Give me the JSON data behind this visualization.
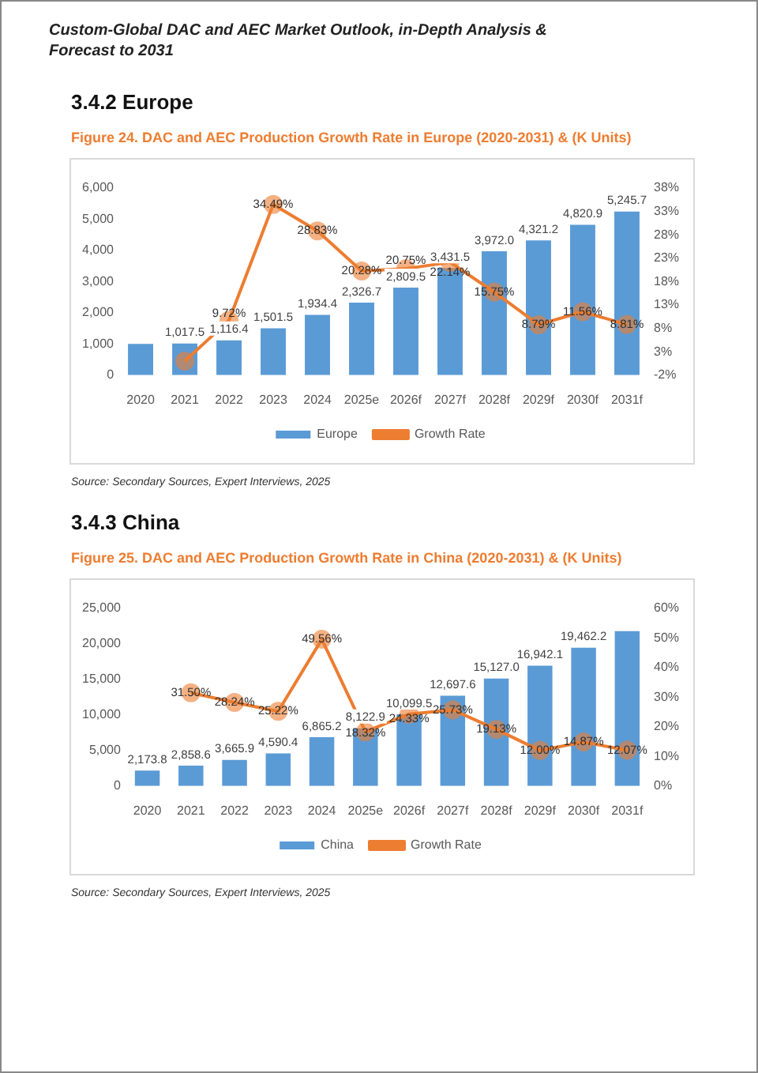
{
  "chart_data": [
    {
      "type": "bar",
      "subtitle": "3.4.2  Europe",
      "title": "Figure 24.   DAC and AEC Production Growth Rate in Europe (2020-2031) & (K Units)",
      "categories": [
        "2020",
        "2021",
        "2022",
        "2023",
        "2024",
        "2025e",
        "2026f",
        "2027f",
        "2028f",
        "2029f",
        "2030f",
        "2031f"
      ],
      "series": [
        {
          "name": "Europe",
          "color": "#5b9bd5",
          "values": [
            1000,
            1017.5,
            1116.4,
            1501.5,
            1934.4,
            2326.7,
            2809.5,
            3431.5,
            3972.0,
            4321.2,
            4820.9,
            5245.7
          ],
          "value_labels": [
            null,
            "1,017.5",
            "1,116.4",
            "1,501.5",
            "1,934.4",
            "2,326.7",
            "2,809.5",
            "3,431.5",
            "3,972.0",
            "4,321.2",
            "4,820.9",
            "5,245.7"
          ]
        },
        {
          "name": "Growth Rate",
          "type": "line",
          "axis": "y2",
          "color": "#ed7d31",
          "values": [
            null,
            1.0,
            9.72,
            34.49,
            28.83,
            20.28,
            20.75,
            22.14,
            15.75,
            8.79,
            11.56,
            8.81
          ],
          "value_labels": [
            null,
            null,
            "9.72%",
            "34.49%",
            "28.83%",
            "20.28%",
            "20.75%",
            "22.14%",
            "15.75%",
            "8.79%",
            "11.56%",
            "8.81%"
          ]
        }
      ],
      "ylim": [
        0,
        6000
      ],
      "yticks": [
        0,
        {
          "value": 1000,
          "label": "1,000"
        },
        {
          "value": 2000,
          "label": "2,000"
        },
        {
          "value": 3000,
          "label": "3,000"
        },
        {
          "value": 4000,
          "label": "4,000"
        },
        {
          "value": 5000,
          "label": "5,000"
        },
        {
          "value": 6000,
          "label": "6,000"
        }
      ],
      "y2lim": [
        -2,
        38
      ],
      "y2ticks": [
        {
          "value": -2,
          "label": "-2%"
        },
        {
          "value": 3,
          "label": "3%"
        },
        {
          "value": 8,
          "label": "8%"
        },
        {
          "value": 13,
          "label": "13%"
        },
        {
          "value": 18,
          "label": "18%"
        },
        {
          "value": 23,
          "label": "23%"
        },
        {
          "value": 28,
          "label": "28%"
        },
        {
          "value": 33,
          "label": "33%"
        },
        {
          "value": 38,
          "label": "38%"
        }
      ],
      "marker": "circle",
      "legend": "bottom",
      "annotations": [
        "Custom-Global DAC and AEC Market Outlook, in-Depth Analysis & Forecast to 2031",
        "Source: Secondary Sources, Expert Interviews, 2025"
      ]
    },
    {
      "type": "bar",
      "subtitle": "3.4.3  China",
      "title": "Figure 25.   DAC and AEC Production Growth Rate in China (2020-2031) & (K Units)",
      "categories": [
        "2020",
        "2021",
        "2022",
        "2023",
        "2024",
        "2025e",
        "2026f",
        "2027f",
        "2028f",
        "2029f",
        "2030f",
        "2031f"
      ],
      "series": [
        {
          "name": "China",
          "color": "#5b9bd5",
          "values": [
            2173.8,
            2858.6,
            3665.9,
            4590.4,
            6865.2,
            8122.9,
            10099.5,
            12697.6,
            15127.0,
            16942.1,
            19462.2,
            21800
          ],
          "value_labels": [
            "2,173.8",
            "2,858.6",
            "3,665.9",
            "4,590.4",
            "6,865.2",
            "8,122.9",
            "10,099.5",
            "12,697.6",
            "15,127.0",
            "16,942.1",
            "19,462.2",
            null
          ]
        },
        {
          "name": "Growth Rate",
          "type": "line",
          "axis": "y2",
          "color": "#ed7d31",
          "values": [
            null,
            31.5,
            28.24,
            25.22,
            49.56,
            18.32,
            24.33,
            25.73,
            19.13,
            12.0,
            14.87,
            12.07
          ],
          "value_labels": [
            null,
            "31.50%",
            "28.24%",
            "25.22%",
            "49.56%",
            "18.32%",
            "24.33%",
            "25.73%",
            "19.13%",
            "12.00%",
            "14.87%",
            "12.07%"
          ]
        }
      ],
      "ylim": [
        0,
        25000
      ],
      "yticks": [
        0,
        {
          "value": 5000,
          "label": "5,000"
        },
        {
          "value": 10000,
          "label": "10,000"
        },
        {
          "value": 15000,
          "label": "15,000"
        },
        {
          "value": 20000,
          "label": "20,000"
        },
        {
          "value": 25000,
          "label": "25,000"
        }
      ],
      "y2lim": [
        0,
        60
      ],
      "y2ticks": [
        {
          "value": 0,
          "label": "0%"
        },
        {
          "value": 10,
          "label": "10%"
        },
        {
          "value": 20,
          "label": "20%"
        },
        {
          "value": 30,
          "label": "30%"
        },
        {
          "value": 40,
          "label": "40%"
        },
        {
          "value": 50,
          "label": "50%"
        },
        {
          "value": 60,
          "label": "60%"
        }
      ],
      "marker": "circle",
      "legend": "bottom",
      "annotations": [
        "Source: Secondary Sources, Expert Interviews, 2025"
      ]
    }
  ]
}
